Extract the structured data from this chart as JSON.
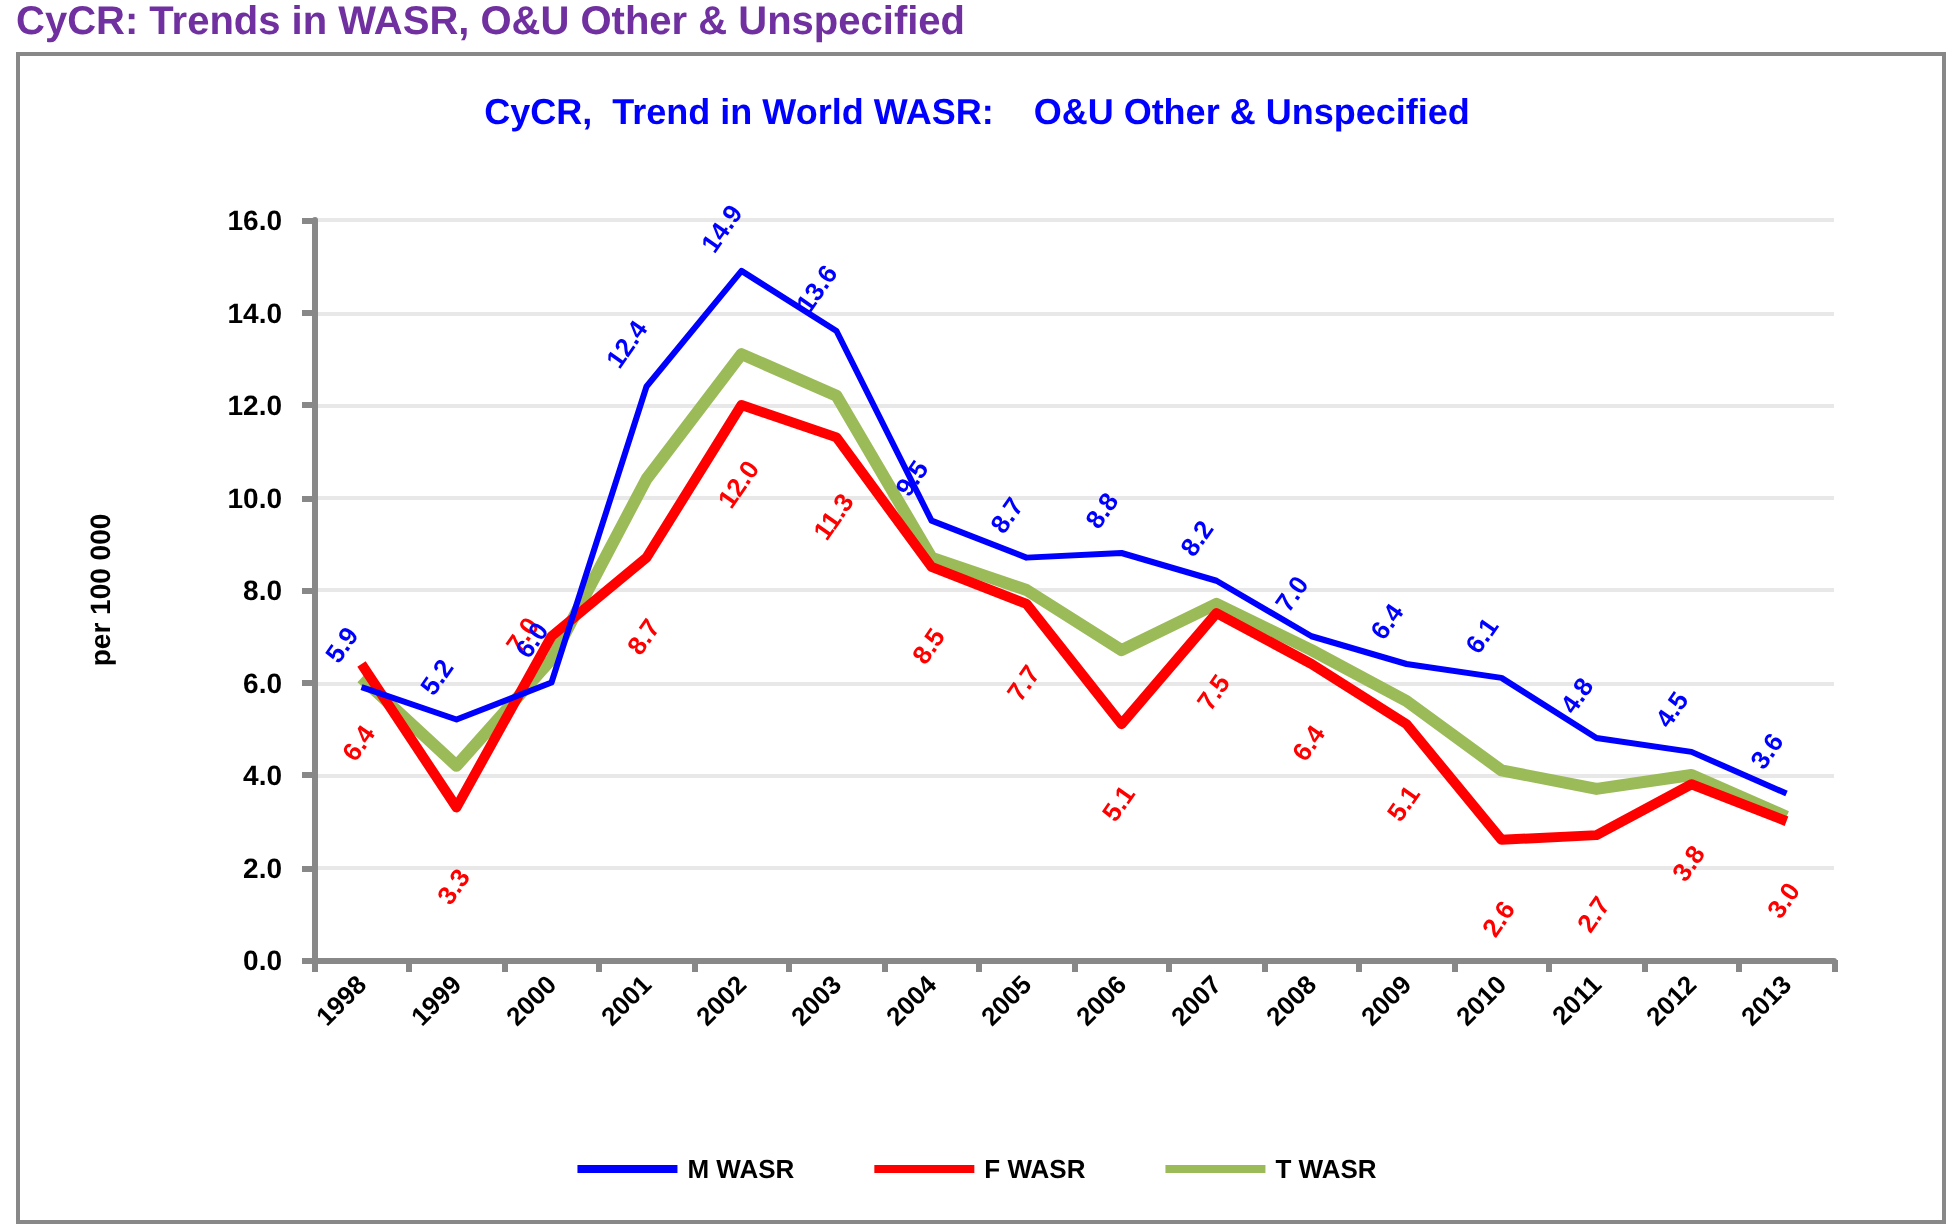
{
  "chart_data": {
    "type": "line",
    "title": "CyCR,  Trend in World WASR:    O&U Other & Unspecified",
    "annotations": [
      "CyCR: Trends in WASR, O&U Other & Unspecified"
    ],
    "ylabel": "per 100 000",
    "categories": [
      "1998",
      "1999",
      "2000",
      "2001",
      "2002",
      "2003",
      "2004",
      "2005",
      "2006",
      "2007",
      "2008",
      "2009",
      "2010",
      "2011",
      "2012",
      "2013"
    ],
    "series": [
      {
        "name": "M WASR",
        "color": "#0000ff",
        "values": [
          5.9,
          5.2,
          6.0,
          12.4,
          14.9,
          13.6,
          9.5,
          8.7,
          8.8,
          8.2,
          7.0,
          6.4,
          6.1,
          4.8,
          4.5,
          3.6
        ],
        "value_labels": [
          "5.9",
          "5.2",
          "6.0",
          "12.4",
          "14.9",
          "13.6",
          "9.5",
          "8.7",
          "8.8",
          "8.2",
          "7.0",
          "6.4",
          "6.1",
          "4.8",
          "4.5",
          "3.6"
        ]
      },
      {
        "name": "F WASR",
        "color": "#ff0000",
        "values": [
          6.4,
          3.3,
          7.0,
          8.7,
          12.0,
          11.3,
          8.5,
          7.7,
          5.1,
          7.5,
          6.4,
          5.1,
          2.6,
          2.7,
          3.8,
          3.0
        ],
        "value_labels": [
          "6.4",
          "3.3",
          "7.0",
          "8.7",
          "12.0",
          "11.3",
          "8.5",
          "7.7",
          "5.1",
          "7.5",
          "6.4",
          "5.1",
          "2.6",
          "2.7",
          "3.8",
          "3.0"
        ]
      },
      {
        "name": "T WASR",
        "color": "#9bbb59",
        "values": [
          6.1,
          4.2,
          6.5,
          10.4,
          13.1,
          12.2,
          8.7,
          8.0,
          6.7,
          7.7,
          6.7,
          5.6,
          4.1,
          3.7,
          4.0,
          3.1
        ]
      }
    ],
    "ylim": [
      0,
      16
    ],
    "yticks": [
      {
        "value": 0,
        "label": "0.0"
      },
      {
        "value": 2,
        "label": "2.0"
      },
      {
        "value": 4,
        "label": "4.0"
      },
      {
        "value": 6,
        "label": "6.0"
      },
      {
        "value": 8,
        "label": "8.0"
      },
      {
        "value": 10,
        "label": "10.0"
      },
      {
        "value": 12,
        "label": "12.0"
      },
      {
        "value": 14,
        "label": "14.0"
      },
      {
        "value": 16,
        "label": "16.0"
      }
    ],
    "grid": "y",
    "legend": "bottom",
    "marker": "none",
    "line_style": "solid"
  }
}
